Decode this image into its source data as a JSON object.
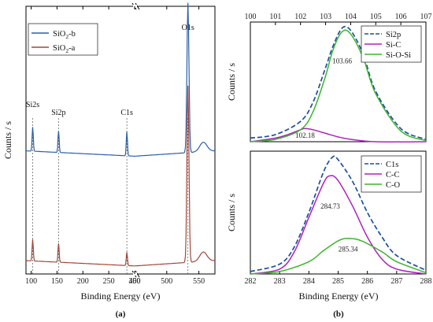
{
  "chart_data": [
    {
      "type": "line",
      "panel_label": "(a)",
      "xlabel": "Binding Energy (eV)",
      "ylabel": "Counts / s",
      "x_segments": [
        {
          "xlim": [
            90,
            300
          ],
          "ticks": [
            100,
            150,
            200,
            250,
            300
          ]
        },
        {
          "xlim": [
            450,
            575
          ],
          "ticks": [
            450,
            500,
            550
          ]
        }
      ],
      "axis_break": "between 300 and 450",
      "peak_labels": [
        {
          "text": "Si2s",
          "x": 103,
          "color": "#222222"
        },
        {
          "text": "Si2p",
          "x": 153,
          "color": "#222222"
        },
        {
          "text": "C1s",
          "x": 285,
          "color": "#9b1c2c"
        },
        {
          "text": "O1s",
          "x": 533,
          "color": "#222222"
        }
      ],
      "reference_lines": [
        103,
        153,
        285,
        533
      ],
      "legend_position": "top-left",
      "series": [
        {
          "name": "SiO2-b",
          "label_main": "SiO",
          "label_sub": "2",
          "label_suffix": "-b",
          "color": "#2b5fa8",
          "baseline": 0.44,
          "peaks": [
            {
              "x": 103,
              "h": 0.09
            },
            {
              "x": 153,
              "h": 0.08
            },
            {
              "x": 285,
              "h": 0.09
            },
            {
              "x": 533,
              "h": 0.56
            }
          ]
        },
        {
          "name": "SiO2-a",
          "label_main": "SiO",
          "label_sub": "2",
          "label_suffix": "-a",
          "color": "#a0483a",
          "baseline": 0.03,
          "peaks": [
            {
              "x": 103,
              "h": 0.08
            },
            {
              "x": 153,
              "h": 0.07
            },
            {
              "x": 285,
              "h": 0.05
            },
            {
              "x": 533,
              "h": 0.66
            }
          ]
        }
      ]
    },
    {
      "type": "line",
      "panel_label": "(b)",
      "ylabel": "Counts / s",
      "top_axis_ticks": [
        100,
        101,
        102,
        103,
        104,
        105,
        106,
        107
      ],
      "xlim": [
        100,
        107
      ],
      "legend_position": "top-right",
      "series": [
        {
          "name": "Si2p",
          "color": "#1f4fa0",
          "dashed": true,
          "x": [
            100,
            101,
            102,
            102.5,
            103,
            103.3,
            103.66,
            104,
            104.5,
            105,
            106,
            107
          ],
          "y": [
            0.03,
            0.06,
            0.17,
            0.33,
            0.62,
            0.8,
            0.95,
            0.93,
            0.73,
            0.42,
            0.11,
            0.02
          ]
        },
        {
          "name": "Si-C",
          "color": "#b020c0",
          "dashed": false,
          "x": [
            100,
            101,
            101.5,
            102,
            102.18,
            102.5,
            103,
            103.5,
            104,
            105,
            107
          ],
          "y": [
            0.0,
            0.03,
            0.06,
            0.1,
            0.11,
            0.1,
            0.07,
            0.04,
            0.02,
            0.0,
            0.0
          ]
        },
        {
          "name": "Si-O-Si",
          "color": "#3bb52a",
          "dashed": false,
          "x": [
            100,
            101,
            102,
            102.5,
            103,
            103.3,
            103.66,
            104,
            104.5,
            105,
            106,
            107
          ],
          "y": [
            0.0,
            0.02,
            0.1,
            0.25,
            0.55,
            0.77,
            0.92,
            0.9,
            0.7,
            0.4,
            0.09,
            0.01
          ]
        }
      ],
      "peak_labels": [
        {
          "text": "103.66",
          "x": 103.66,
          "y": 0.64
        },
        {
          "text": "102.18",
          "x": 102.18,
          "y": 0.02
        }
      ]
    },
    {
      "type": "line",
      "xlabel": "Binding Energy (eV)",
      "ylabel": "Counts / s",
      "xlim": [
        282,
        288
      ],
      "x_ticks": [
        282,
        283,
        284,
        285,
        286,
        287,
        288
      ],
      "legend_position": "top-right",
      "series": [
        {
          "name": "C1s",
          "color": "#1f4fa0",
          "dashed": true,
          "x": [
            282,
            283,
            283.5,
            284,
            284.5,
            284.8,
            285,
            285.5,
            286,
            286.5,
            287,
            288
          ],
          "y": [
            0.02,
            0.08,
            0.22,
            0.5,
            0.83,
            0.95,
            0.93,
            0.75,
            0.5,
            0.3,
            0.15,
            0.03
          ]
        },
        {
          "name": "C-C",
          "color": "#b020c0",
          "dashed": false,
          "x": [
            282,
            283,
            283.5,
            284,
            284.5,
            284.73,
            285,
            285.5,
            286,
            286.5,
            287,
            288
          ],
          "y": [
            0.0,
            0.04,
            0.18,
            0.46,
            0.74,
            0.8,
            0.76,
            0.55,
            0.3,
            0.12,
            0.04,
            0.0
          ]
        },
        {
          "name": "C-O",
          "color": "#3bb52a",
          "dashed": false,
          "x": [
            282,
            283,
            284,
            284.5,
            285,
            285.34,
            285.8,
            286.5,
            287,
            288
          ],
          "y": [
            0.0,
            0.02,
            0.1,
            0.19,
            0.27,
            0.29,
            0.27,
            0.18,
            0.1,
            0.01
          ]
        }
      ],
      "peak_labels": [
        {
          "text": "284.73",
          "x": 284.73,
          "y": 0.52
        },
        {
          "text": "285.34",
          "x": 285.34,
          "y": 0.17
        }
      ]
    }
  ]
}
